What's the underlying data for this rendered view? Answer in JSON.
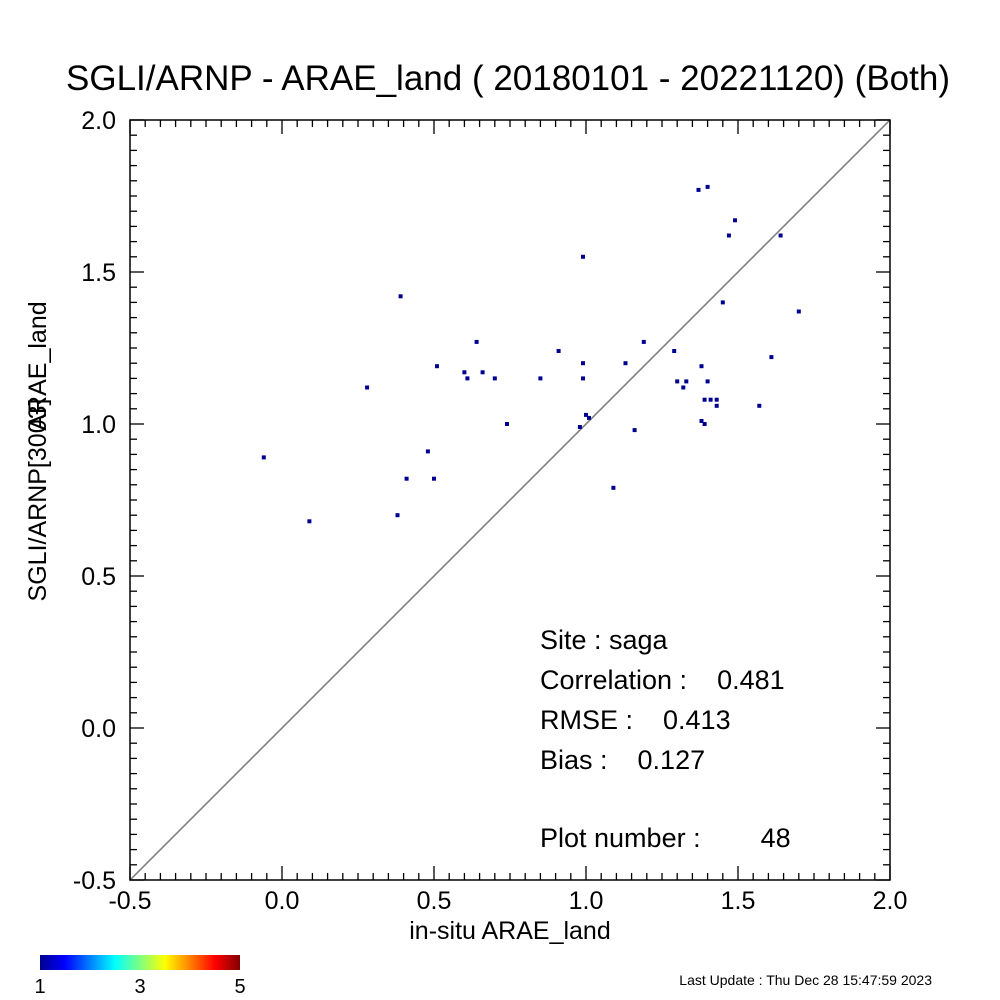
{
  "chart_data": {
    "type": "scatter",
    "title": "SGLI/ARNP - ARAE_land ( 20180101 - 20221120) (Both)",
    "xlabel": "in-situ ARAE_land",
    "ylabel_lines": [
      "SGLI/ARNP[3003]",
      "ARAE_land"
    ],
    "xlim": [
      -0.5,
      2.0
    ],
    "ylim": [
      -0.5,
      2.0
    ],
    "x_ticks": [
      "-0.5",
      "0.0",
      "0.5",
      "1.0",
      "1.5",
      "2.0"
    ],
    "y_ticks": [
      "-0.5",
      "0.0",
      "0.5",
      "1.0",
      "1.5",
      "2.0"
    ],
    "one_to_one_line": true,
    "marker_color": "#00008f",
    "line_color": "#808080",
    "points": [
      {
        "x": -0.06,
        "y": 0.89
      },
      {
        "x": 0.09,
        "y": 0.68
      },
      {
        "x": 0.28,
        "y": 1.12
      },
      {
        "x": 0.38,
        "y": 0.7
      },
      {
        "x": 0.39,
        "y": 1.42
      },
      {
        "x": 0.41,
        "y": 0.82
      },
      {
        "x": 0.48,
        "y": 0.91
      },
      {
        "x": 0.5,
        "y": 0.82
      },
      {
        "x": 0.51,
        "y": 1.19
      },
      {
        "x": 0.6,
        "y": 1.17
      },
      {
        "x": 0.61,
        "y": 1.15
      },
      {
        "x": 0.64,
        "y": 1.27
      },
      {
        "x": 0.66,
        "y": 1.17
      },
      {
        "x": 0.7,
        "y": 1.15
      },
      {
        "x": 0.74,
        "y": 1.0
      },
      {
        "x": 0.85,
        "y": 1.15
      },
      {
        "x": 0.91,
        "y": 1.24
      },
      {
        "x": 0.98,
        "y": 0.99
      },
      {
        "x": 0.99,
        "y": 1.55
      },
      {
        "x": 0.99,
        "y": 1.2
      },
      {
        "x": 0.99,
        "y": 1.15
      },
      {
        "x": 1.0,
        "y": 1.03
      },
      {
        "x": 1.01,
        "y": 1.02
      },
      {
        "x": 1.09,
        "y": 0.79
      },
      {
        "x": 1.13,
        "y": 1.2
      },
      {
        "x": 1.16,
        "y": 0.98
      },
      {
        "x": 1.19,
        "y": 1.27
      },
      {
        "x": 1.29,
        "y": 1.24
      },
      {
        "x": 1.3,
        "y": 1.14
      },
      {
        "x": 1.32,
        "y": 1.12
      },
      {
        "x": 1.33,
        "y": 1.14
      },
      {
        "x": 1.37,
        "y": 1.77
      },
      {
        "x": 1.38,
        "y": 1.19
      },
      {
        "x": 1.38,
        "y": 1.01
      },
      {
        "x": 1.39,
        "y": 1.0
      },
      {
        "x": 1.39,
        "y": 1.08
      },
      {
        "x": 1.4,
        "y": 1.78
      },
      {
        "x": 1.4,
        "y": 1.14
      },
      {
        "x": 1.41,
        "y": 1.08
      },
      {
        "x": 1.43,
        "y": 1.08
      },
      {
        "x": 1.43,
        "y": 1.06
      },
      {
        "x": 1.45,
        "y": 1.4
      },
      {
        "x": 1.47,
        "y": 1.62
      },
      {
        "x": 1.49,
        "y": 1.67
      },
      {
        "x": 1.57,
        "y": 1.06
      },
      {
        "x": 1.61,
        "y": 1.22
      },
      {
        "x": 1.64,
        "y": 1.62
      },
      {
        "x": 1.7,
        "y": 1.37
      }
    ],
    "stats": {
      "site": "Site : saga",
      "correlation": "Correlation :    0.481",
      "rmse": "RMSE :    0.413",
      "bias": "Bias :    0.127",
      "plot_number": "Plot number :        48"
    },
    "colorbar": {
      "colors": [
        "#00008f",
        "#0000ff",
        "#0080ff",
        "#00ffff",
        "#80ff80",
        "#ffff00",
        "#ff8000",
        "#ff0000",
        "#800000"
      ],
      "labels": [
        "1",
        "3",
        "5"
      ]
    }
  },
  "footer": {
    "last_update": "Last Update : Thu Dec 28 15:47:59 2023"
  }
}
